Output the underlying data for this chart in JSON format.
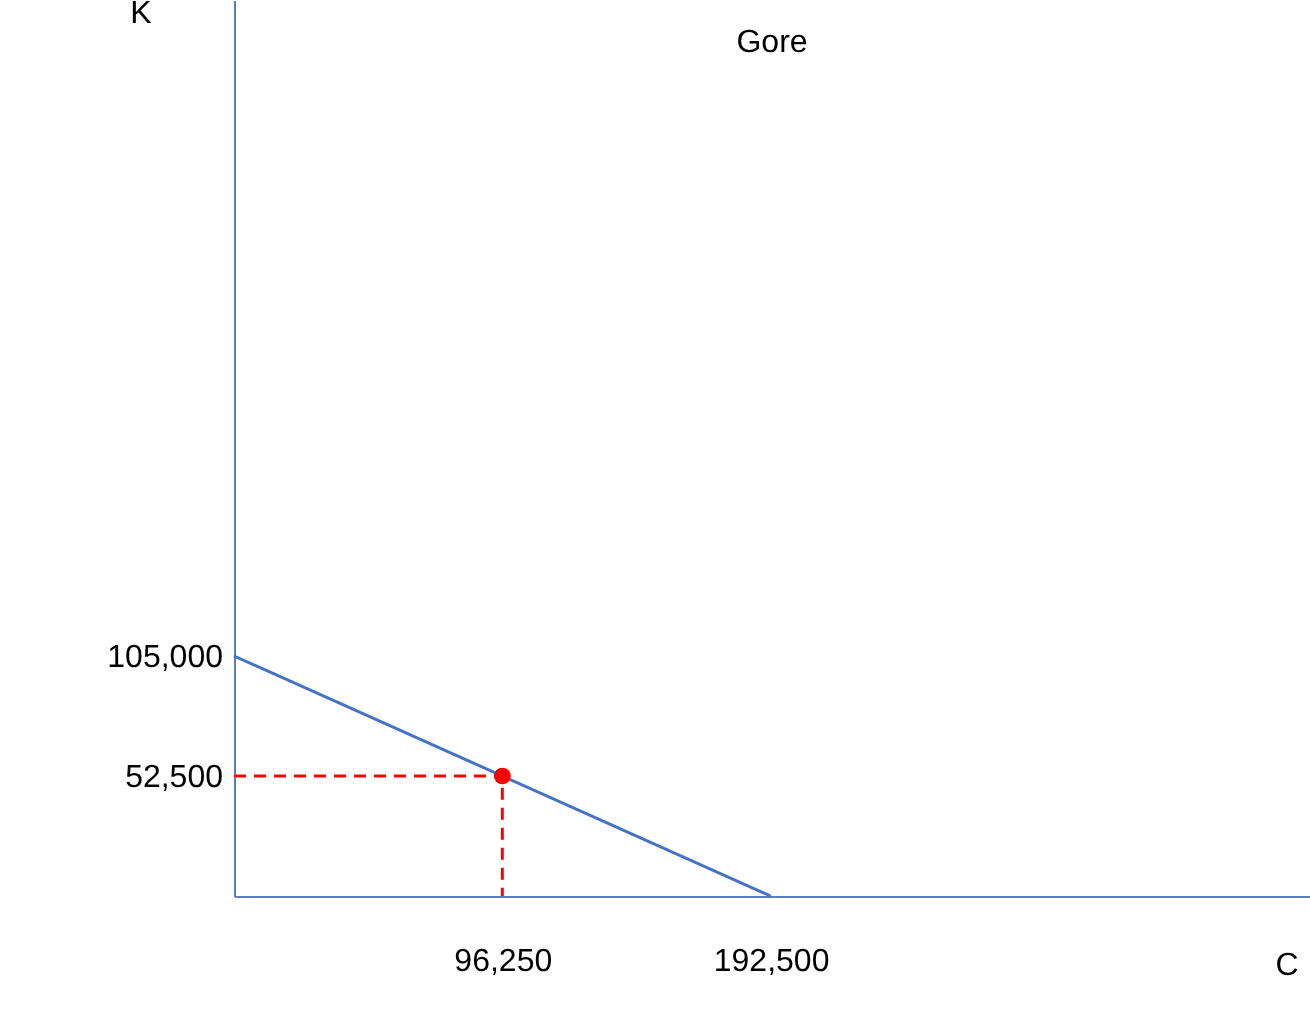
{
  "chart_data": {
    "type": "line",
    "title": "Gore",
    "xlabel": "C",
    "ylabel": "K",
    "series": [
      {
        "color": "#4472c4",
        "x": [
          0,
          192500
        ],
        "values": [
          105000,
          0
        ],
        "line_style": "solid"
      },
      {
        "color": "#ff0000",
        "x": [
          0,
          96250,
          96250
        ],
        "values": [
          52500,
          52500,
          0
        ],
        "line_style": "dashed"
      },
      {
        "type": "scatter",
        "color": "#ff0000",
        "x": [
          96250
        ],
        "values": [
          52500
        ],
        "marker": "circle"
      }
    ],
    "xlim": [
      0,
      386000
    ],
    "ylim": [
      0,
      392000
    ],
    "xticks": [
      {
        "value": 96250,
        "label": "96,250"
      },
      {
        "value": 192500,
        "label": "192,500"
      }
    ],
    "yticks": [
      {
        "value": 52500,
        "label": "52,500"
      },
      {
        "value": 105000,
        "label": "105,000"
      }
    ],
    "grid": false
  }
}
